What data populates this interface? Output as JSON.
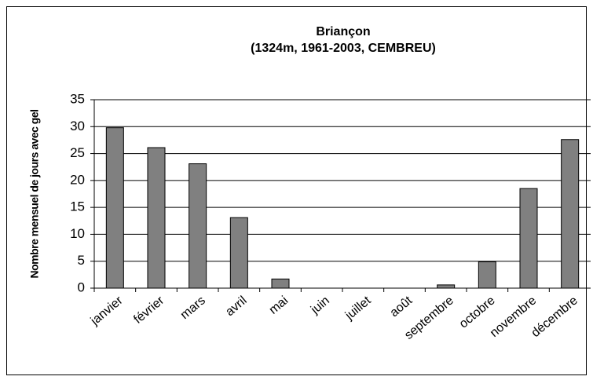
{
  "chart_data": {
    "type": "bar",
    "title": "Briançon",
    "subtitle": "(1324m, 1961-2003, CEMBREU)",
    "y_label": "Nombre mensuel de jours avec gel",
    "categories": [
      "janvier",
      "février",
      "mars",
      "avril",
      "mai",
      "juin",
      "juillet",
      "août",
      "septembre",
      "octobre",
      "novembre",
      "décembre"
    ],
    "values": [
      29.8,
      26.1,
      23.1,
      13.1,
      1.7,
      0,
      0,
      0,
      0.6,
      4.9,
      18.5,
      27.6
    ],
    "color": "#808080",
    "ylim": [
      0,
      35
    ],
    "yticks": [
      0,
      5,
      10,
      15,
      20,
      25,
      30,
      35
    ],
    "grid": true
  }
}
